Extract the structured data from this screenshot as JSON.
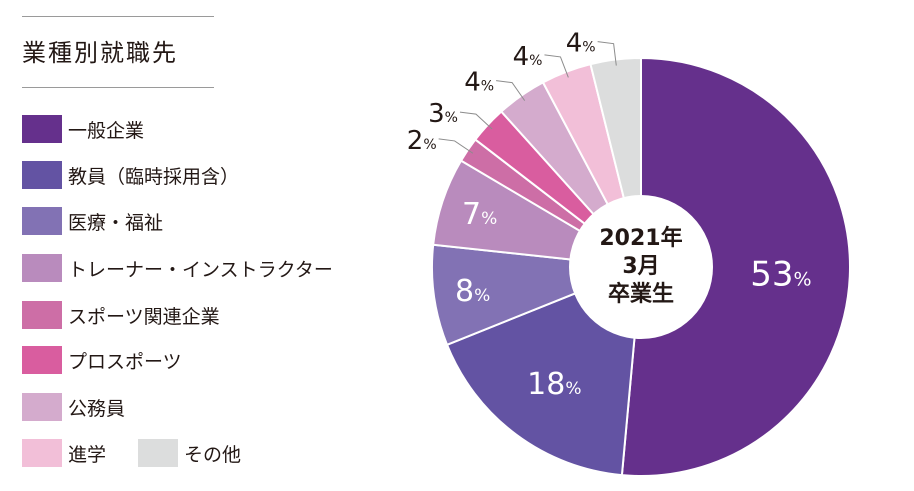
{
  "legend_title": "業種別就職先",
  "center_label": [
    "2021年",
    "3月",
    "卒業生"
  ],
  "chart_data": {
    "type": "pie",
    "title": "業種別就職先",
    "center_text": "2021年 3月 卒業生",
    "unit": "%",
    "legend_placement": "left",
    "slices": [
      {
        "label": "一般企業",
        "value": 53,
        "color": "#65308c"
      },
      {
        "label": "教員（臨時採用含）",
        "value": 18,
        "color": "#6353a3"
      },
      {
        "label": "医療・福祉",
        "value": 8,
        "color": "#8272b4"
      },
      {
        "label": "トレーナー・インストラクター",
        "value": 7,
        "color": "#b98bbd"
      },
      {
        "label": "スポーツ関連企業",
        "value": 2,
        "color": "#cd6ea6"
      },
      {
        "label": "プロスポーツ",
        "value": 3,
        "color": "#d95d9f"
      },
      {
        "label": "公務員",
        "value": 4,
        "color": "#d4abcd"
      },
      {
        "label": "進学",
        "value": 4,
        "color": "#f2bfd8"
      },
      {
        "label": "その他",
        "value": 4,
        "color": "#dcdddd"
      }
    ]
  }
}
